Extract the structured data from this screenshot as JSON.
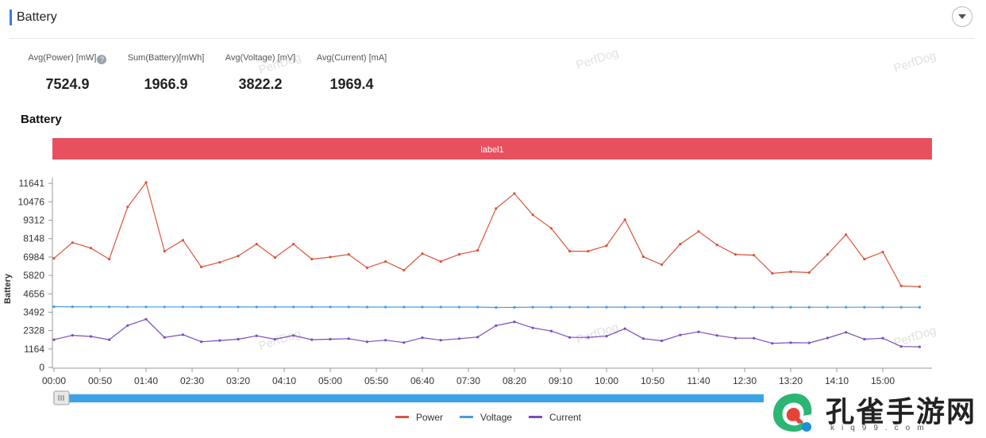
{
  "header": {
    "title": "Battery"
  },
  "stats": [
    {
      "label": "Avg(Power) [mW]",
      "value": "7524.9",
      "has_help": true
    },
    {
      "label": "Sum(Battery)[mWh]",
      "value": "1966.9"
    },
    {
      "label": "Avg(Voltage) [mV]",
      "value": "3822.2"
    },
    {
      "label": "Avg(Current) [mA]",
      "value": "1969.4"
    }
  ],
  "watermark": "PerfDog",
  "chart_data": {
    "type": "line",
    "title": "Battery",
    "ylabel": "Battery",
    "xlabel": "",
    "band_label": "label1",
    "ylim": [
      0,
      12000
    ],
    "y_ticks": [
      0,
      1164,
      2328,
      3492,
      4656,
      5820,
      6984,
      8148,
      9312,
      10476,
      11641
    ],
    "x_ticks": [
      "00:00",
      "00:50",
      "01:40",
      "02:30",
      "03:20",
      "04:10",
      "05:00",
      "05:50",
      "06:40",
      "07:30",
      "08:20",
      "09:10",
      "10:00",
      "10:50",
      "11:40",
      "12:30",
      "13:20",
      "14:10",
      "15:00"
    ],
    "x_tick_seconds": [
      0,
      3000,
      6000,
      9000,
      12000,
      15000,
      18000,
      21000,
      24000,
      27000,
      30000,
      33000,
      36000,
      39000,
      42000,
      45000,
      48000,
      51000,
      54000
    ],
    "x_seconds": [
      0,
      1200,
      2400,
      3600,
      4800,
      6000,
      7200,
      8400,
      9600,
      10800,
      12000,
      13200,
      14400,
      15600,
      16800,
      18000,
      19200,
      20400,
      21600,
      22800,
      24000,
      25200,
      26400,
      27600,
      28800,
      30000,
      31200,
      32400,
      33600,
      34800,
      36000,
      37200,
      38400,
      39600,
      40800,
      42000,
      43200,
      44400,
      45600,
      46800,
      48000,
      49200,
      50400,
      51600,
      52800,
      54000,
      55200,
      56400
    ],
    "x_max_seconds": 57000,
    "legend_position": "bottom-center",
    "grid": false,
    "series": [
      {
        "name": "Power",
        "color": "#d9553b",
        "values": [
          6900,
          7900,
          7550,
          6850,
          10150,
          11700,
          7350,
          8050,
          6350,
          6650,
          7050,
          7800,
          6950,
          7800,
          6850,
          6980,
          7150,
          6300,
          6700,
          6150,
          7200,
          6700,
          7150,
          7400,
          10050,
          11000,
          9650,
          8800,
          7350,
          7350,
          7700,
          9350,
          7000,
          6500,
          7800,
          8600,
          7750,
          7150,
          7100,
          5950,
          6050,
          6000,
          7150,
          8400,
          6850,
          7300,
          5150,
          5100
        ]
      },
      {
        "name": "Voltage",
        "color": "#4c9be0",
        "values": [
          3840,
          3835,
          3830,
          3830,
          3825,
          3825,
          3825,
          3825,
          3822,
          3822,
          3822,
          3822,
          3820,
          3820,
          3820,
          3820,
          3820,
          3818,
          3818,
          3818,
          3818,
          3815,
          3815,
          3815,
          3790,
          3795,
          3810,
          3812,
          3812,
          3812,
          3812,
          3810,
          3810,
          3810,
          3810,
          3810,
          3810,
          3808,
          3808,
          3808,
          3808,
          3808,
          3808,
          3806,
          3806,
          3806,
          3805,
          3805
        ]
      },
      {
        "name": "Current",
        "color": "#7a4bbd",
        "values": [
          1750,
          2030,
          1960,
          1750,
          2650,
          3050,
          1900,
          2070,
          1620,
          1700,
          1780,
          2000,
          1780,
          2020,
          1750,
          1780,
          1820,
          1620,
          1720,
          1570,
          1880,
          1720,
          1820,
          1920,
          2640,
          2880,
          2500,
          2300,
          1900,
          1900,
          1980,
          2450,
          1820,
          1680,
          2050,
          2250,
          2020,
          1850,
          1850,
          1520,
          1560,
          1550,
          1860,
          2220,
          1780,
          1850,
          1320,
          1300
        ]
      }
    ]
  },
  "brand": {
    "name": "孔雀手游网",
    "domain": "kiq99.com"
  }
}
